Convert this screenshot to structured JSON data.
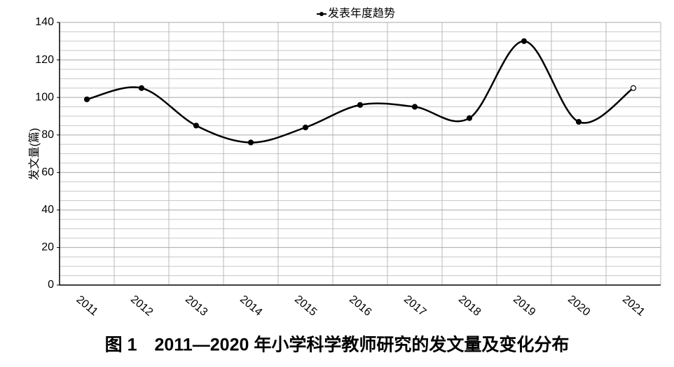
{
  "chart_data": {
    "type": "line",
    "legend_title": "发表年度趋势",
    "ylabel": "发文量(篇)",
    "caption": "图 1　2011—2020 年小学科学教师研究的发文量及变化分布",
    "categories": [
      "2011",
      "2012",
      "2013",
      "2014",
      "2015",
      "2016",
      "2017",
      "2018",
      "2019",
      "2020",
      "2021"
    ],
    "series": [
      {
        "name": "发表年度趋势",
        "color": "#000000",
        "values": [
          99,
          105,
          85,
          76,
          84,
          96,
          95,
          89,
          130,
          87,
          105
        ]
      }
    ],
    "ylim": [
      0,
      140
    ],
    "yticks": [
      0,
      20,
      40,
      60,
      80,
      100,
      120,
      140
    ],
    "grid": true,
    "smooth": true,
    "legend": "top"
  }
}
